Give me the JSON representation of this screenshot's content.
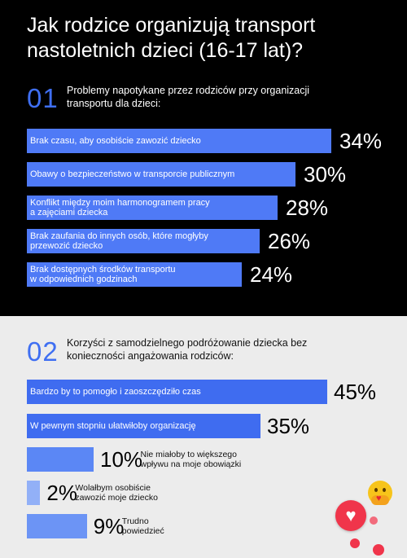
{
  "title": "Jak rodzice organizują transport nastoletnich dzieci (16-17 lat)?",
  "sections": [
    {
      "number": "01",
      "description": "Problemy napotykane przez rodziców przy organizacji transportu dla dzieci:"
    },
    {
      "number": "02",
      "description": "Korzyści z samodzielnego podróżowanie dziecka bez konieczności angażowania rodziców:"
    }
  ],
  "chart_data": [
    {
      "type": "bar",
      "orientation": "horizontal",
      "title": "Problemy napotykane przez rodziców przy organizacji transportu dla dzieci:",
      "categories": [
        "Brak czasu, aby osobiście zawozić dziecko",
        "Obawy o bezpieczeństwo w transporcie publicznym",
        "Konflikt między moim harmonogramem pracy a zajęciami dziecka",
        "Brak zaufania do innych osób, które mogłyby przewozić dziecko",
        "Brak dostępnych środków transportu w odpowiednich godzinach"
      ],
      "label_lines": [
        [
          "Brak czasu, aby osobiście zawozić dziecko"
        ],
        [
          "Obawy o bezpieczeństwo w transporcie publicznym"
        ],
        [
          "Konflikt między moim harmonogramem pracy",
          "a zajęciami dziecka"
        ],
        [
          "Brak zaufania do innych osób, które mogłyby",
          "przewozić dziecko"
        ],
        [
          "Brak dostępnych środków transportu",
          "w odpowiednich godzinach"
        ]
      ],
      "values": [
        34,
        30,
        28,
        26,
        24
      ],
      "value_labels": [
        "34%",
        "30%",
        "28%",
        "26%",
        "24%"
      ],
      "unit": "%",
      "bar_color": "#4f7af6"
    },
    {
      "type": "bar",
      "orientation": "horizontal",
      "title": "Korzyści z samodzielnego podróżowanie dziecka bez konieczności angażowania rodziców:",
      "categories": [
        "Bardzo by to pomogło i zaoszczędziło czas",
        "W pewnym stopniu ułatwiłoby organizację",
        "Nie miałoby to większego wpływu na moje obowiązki",
        "Wolałbym osobiście zawozić moje dziecko",
        "Trudno powiedzieć"
      ],
      "label_lines": [
        [
          "Bardzo by to pomogło i zaoszczędziło czas"
        ],
        [
          "W pewnym stopniu ułatwiłoby organizację"
        ],
        [
          "Nie miałoby to większego",
          "wpływu na moje obowiązki"
        ],
        [
          "Wolałbym osobiście",
          "zawozić moje dziecko"
        ],
        [
          "Trudno",
          "powiedzieć"
        ]
      ],
      "label_position": [
        "inside",
        "inside",
        "outside",
        "outside",
        "outside"
      ],
      "values": [
        45,
        35,
        10,
        2,
        9
      ],
      "value_labels": [
        "45%",
        "35%",
        "10%",
        "2%",
        "9%"
      ],
      "unit": "%",
      "bar_colors": [
        "#3f6cf0",
        "#3f6cf0",
        "#5b87f5",
        "#92b0f7",
        "#6c94f5"
      ]
    }
  ],
  "decorations": [
    "hugging-face-emoji",
    "heart-reaction-icon"
  ],
  "colors": {
    "accent": "#3f6ff2",
    "top_background": "#000000",
    "bottom_background": "#ececec",
    "reaction_red": "#f0354b"
  }
}
